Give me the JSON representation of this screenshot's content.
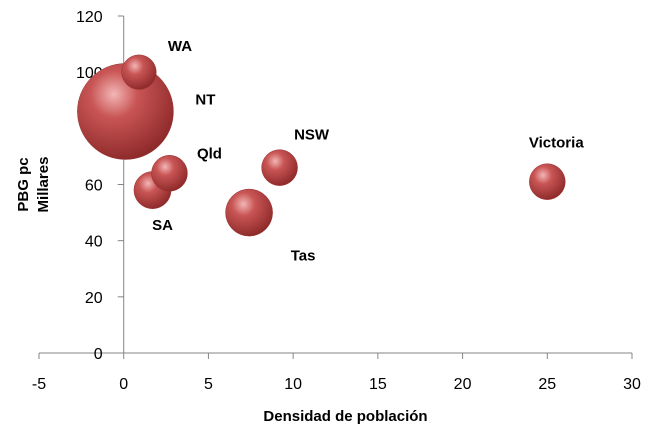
{
  "chart_data": {
    "type": "scatter",
    "subtype": "bubble",
    "title": "",
    "xlabel": "Densidad de población",
    "ylabel_lines": [
      "PBG pc",
      "Millares"
    ],
    "xlim": [
      -5,
      30
    ],
    "ylim": [
      0,
      120
    ],
    "x_ticks": [
      -5,
      0,
      5,
      10,
      15,
      20,
      25,
      30
    ],
    "y_ticks": [
      0,
      20,
      40,
      60,
      80,
      100,
      120
    ],
    "grid": false,
    "legend": "none",
    "bubble_color": "#b03a3a",
    "points": [
      {
        "label": "NT",
        "x": 0.1,
        "y": 86,
        "size": 100
      },
      {
        "label": "WA",
        "x": 0.9,
        "y": 100,
        "size": 13
      },
      {
        "label": "SA",
        "x": 1.7,
        "y": 58,
        "size": 15
      },
      {
        "label": "Qld",
        "x": 2.7,
        "y": 64,
        "size": 14
      },
      {
        "label": "Tas",
        "x": 7.4,
        "y": 50,
        "size": 24
      },
      {
        "label": "NSW",
        "x": 9.2,
        "y": 66,
        "size": 14
      },
      {
        "label": "Victoria",
        "x": 25,
        "y": 61,
        "size": 14
      }
    ]
  }
}
